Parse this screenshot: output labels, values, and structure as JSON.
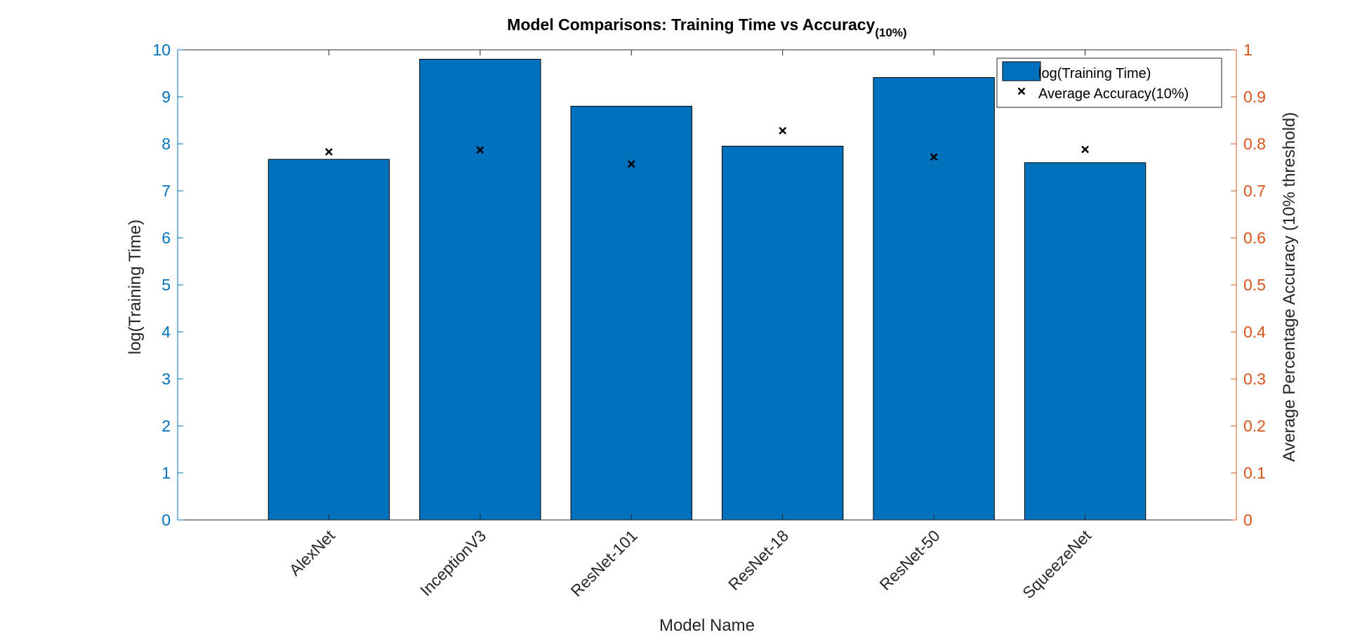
{
  "chart_data": {
    "type": "bar",
    "title": "Model Comparisons: Training Time vs Accuracy",
    "title_subscript": "(10%)",
    "xlabel": "Model Name",
    "ylabel_left": "log(Training Time)",
    "ylabel_right": "Average Percentage Accuracy (10% threshold)",
    "categories": [
      "AlexNet",
      "InceptionV3",
      "ResNet-101",
      "ResNet-18",
      "ResNet-50",
      "SqueezeNet"
    ],
    "x_range": [
      0,
      7
    ],
    "y_left_range": [
      0,
      10
    ],
    "y_left_ticks": [
      "0",
      "1",
      "2",
      "3",
      "4",
      "5",
      "6",
      "7",
      "8",
      "9",
      "10"
    ],
    "y_right_range": [
      0,
      1
    ],
    "y_right_ticks": [
      "0",
      "0.1",
      "0.2",
      "0.3",
      "0.4",
      "0.5",
      "0.6",
      "0.7",
      "0.8",
      "0.9",
      "1"
    ],
    "series": [
      {
        "name": "log(Training Time)",
        "kind": "bar",
        "axis": "left",
        "color": "#0072BD",
        "values": [
          7.67,
          9.8,
          8.8,
          7.95,
          9.41,
          7.6
        ]
      },
      {
        "name": "Average Accuracy(10%)",
        "kind": "scatter",
        "axis": "right",
        "marker": "x",
        "color": "#000000",
        "values": [
          0.783,
          0.787,
          0.757,
          0.828,
          0.772,
          0.788
        ]
      }
    ],
    "legend_position": "top-right",
    "colors": {
      "left_axis": "#0072BD",
      "right_axis": "#D95319",
      "axis_line": "#262626"
    }
  }
}
